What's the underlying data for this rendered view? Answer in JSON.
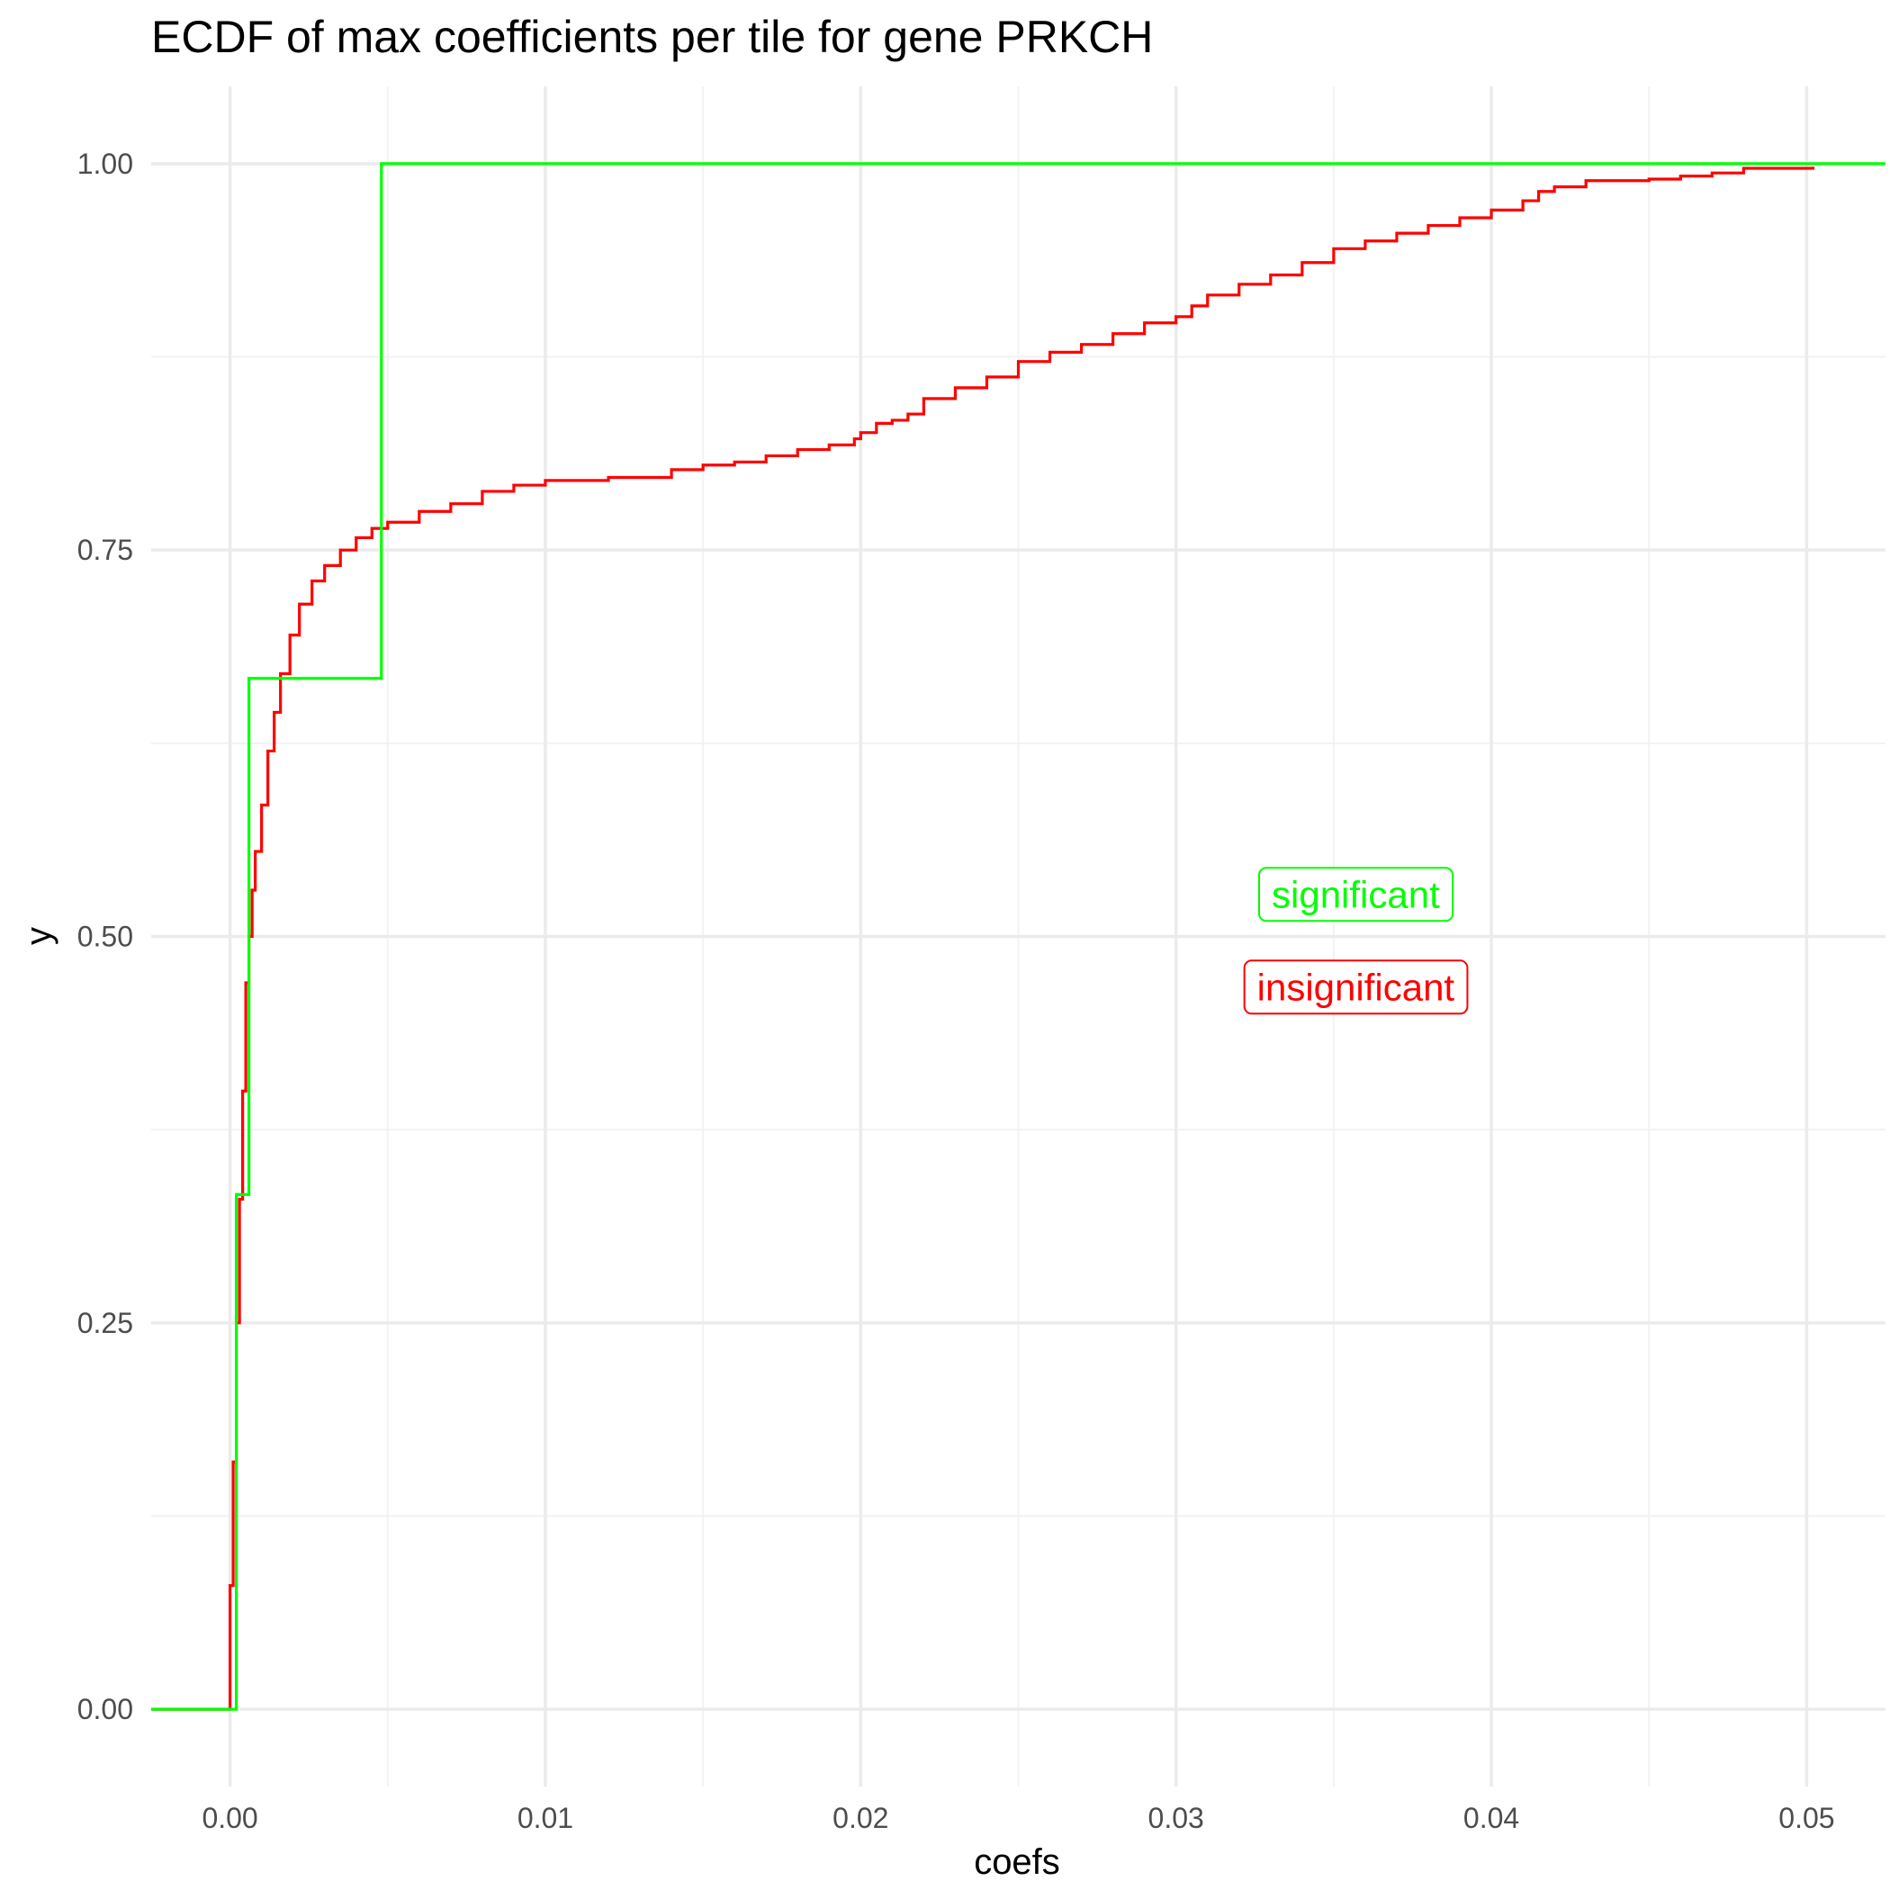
{
  "chart_data": {
    "type": "line",
    "step": true,
    "title": "ECDF of max coefficients per tile for gene PRKCH",
    "xlabel": "coefs",
    "ylabel": "y",
    "xlim": [
      -0.0025,
      0.0525
    ],
    "ylim": [
      -0.05,
      1.05
    ],
    "x_ticks": [
      0.0,
      0.01,
      0.02,
      0.03,
      0.04,
      0.05
    ],
    "x_tick_labels": [
      "0.00",
      "0.01",
      "0.02",
      "0.03",
      "0.04",
      "0.05"
    ],
    "y_ticks": [
      0.0,
      0.25,
      0.5,
      0.75,
      1.0
    ],
    "y_tick_labels": [
      "0.00",
      "0.25",
      "0.50",
      "0.75",
      "1.00"
    ],
    "grid": true,
    "series": [
      {
        "name": "insignificant",
        "color": "#ff0000",
        "points": [
          [
            -0.0025,
            0.0
          ],
          [
            0.0,
            0.0
          ],
          [
            0.0,
            0.08
          ],
          [
            0.0001,
            0.16
          ],
          [
            0.0002,
            0.25
          ],
          [
            0.0003,
            0.33
          ],
          [
            0.0004,
            0.4
          ],
          [
            0.0005,
            0.47
          ],
          [
            0.0006,
            0.5
          ],
          [
            0.0007,
            0.53
          ],
          [
            0.0008,
            0.555
          ],
          [
            0.001,
            0.585
          ],
          [
            0.0012,
            0.62
          ],
          [
            0.0014,
            0.645
          ],
          [
            0.0016,
            0.67
          ],
          [
            0.0019,
            0.695
          ],
          [
            0.0022,
            0.715
          ],
          [
            0.0026,
            0.73
          ],
          [
            0.003,
            0.74
          ],
          [
            0.0035,
            0.75
          ],
          [
            0.004,
            0.758
          ],
          [
            0.0045,
            0.764
          ],
          [
            0.005,
            0.768
          ],
          [
            0.006,
            0.775
          ],
          [
            0.007,
            0.78
          ],
          [
            0.008,
            0.788
          ],
          [
            0.009,
            0.792
          ],
          [
            0.01,
            0.795
          ],
          [
            0.012,
            0.797
          ],
          [
            0.014,
            0.802
          ],
          [
            0.015,
            0.805
          ],
          [
            0.016,
            0.807
          ],
          [
            0.017,
            0.811
          ],
          [
            0.018,
            0.815
          ],
          [
            0.019,
            0.818
          ],
          [
            0.0198,
            0.822
          ],
          [
            0.02,
            0.826
          ],
          [
            0.0205,
            0.832
          ],
          [
            0.021,
            0.834
          ],
          [
            0.0215,
            0.838
          ],
          [
            0.022,
            0.848
          ],
          [
            0.023,
            0.855
          ],
          [
            0.024,
            0.862
          ],
          [
            0.025,
            0.872
          ],
          [
            0.026,
            0.878
          ],
          [
            0.027,
            0.883
          ],
          [
            0.028,
            0.89
          ],
          [
            0.029,
            0.897
          ],
          [
            0.03,
            0.901
          ],
          [
            0.0305,
            0.908
          ],
          [
            0.031,
            0.915
          ],
          [
            0.032,
            0.922
          ],
          [
            0.033,
            0.928
          ],
          [
            0.034,
            0.936
          ],
          [
            0.035,
            0.945
          ],
          [
            0.036,
            0.95
          ],
          [
            0.037,
            0.955
          ],
          [
            0.038,
            0.96
          ],
          [
            0.039,
            0.965
          ],
          [
            0.04,
            0.97
          ],
          [
            0.041,
            0.976
          ],
          [
            0.0415,
            0.982
          ],
          [
            0.042,
            0.985
          ],
          [
            0.043,
            0.989
          ],
          [
            0.045,
            0.99
          ],
          [
            0.046,
            0.992
          ],
          [
            0.047,
            0.994
          ],
          [
            0.048,
            0.997
          ],
          [
            0.0502,
            0.998
          ]
        ]
      },
      {
        "name": "significant",
        "color": "#00ff00",
        "points": [
          [
            -0.0025,
            0.0
          ],
          [
            0.0002,
            0.0
          ],
          [
            0.0002,
            0.333
          ],
          [
            0.0006,
            0.333
          ],
          [
            0.0006,
            0.667
          ],
          [
            0.0048,
            0.667
          ],
          [
            0.0048,
            1.0
          ],
          [
            0.0525,
            1.0
          ]
        ]
      }
    ],
    "legend": {
      "placement": "center-right",
      "entries": [
        {
          "label": "significant",
          "color": "#00ff00"
        },
        {
          "label": "insignificant",
          "color": "#ff0000"
        }
      ]
    }
  }
}
